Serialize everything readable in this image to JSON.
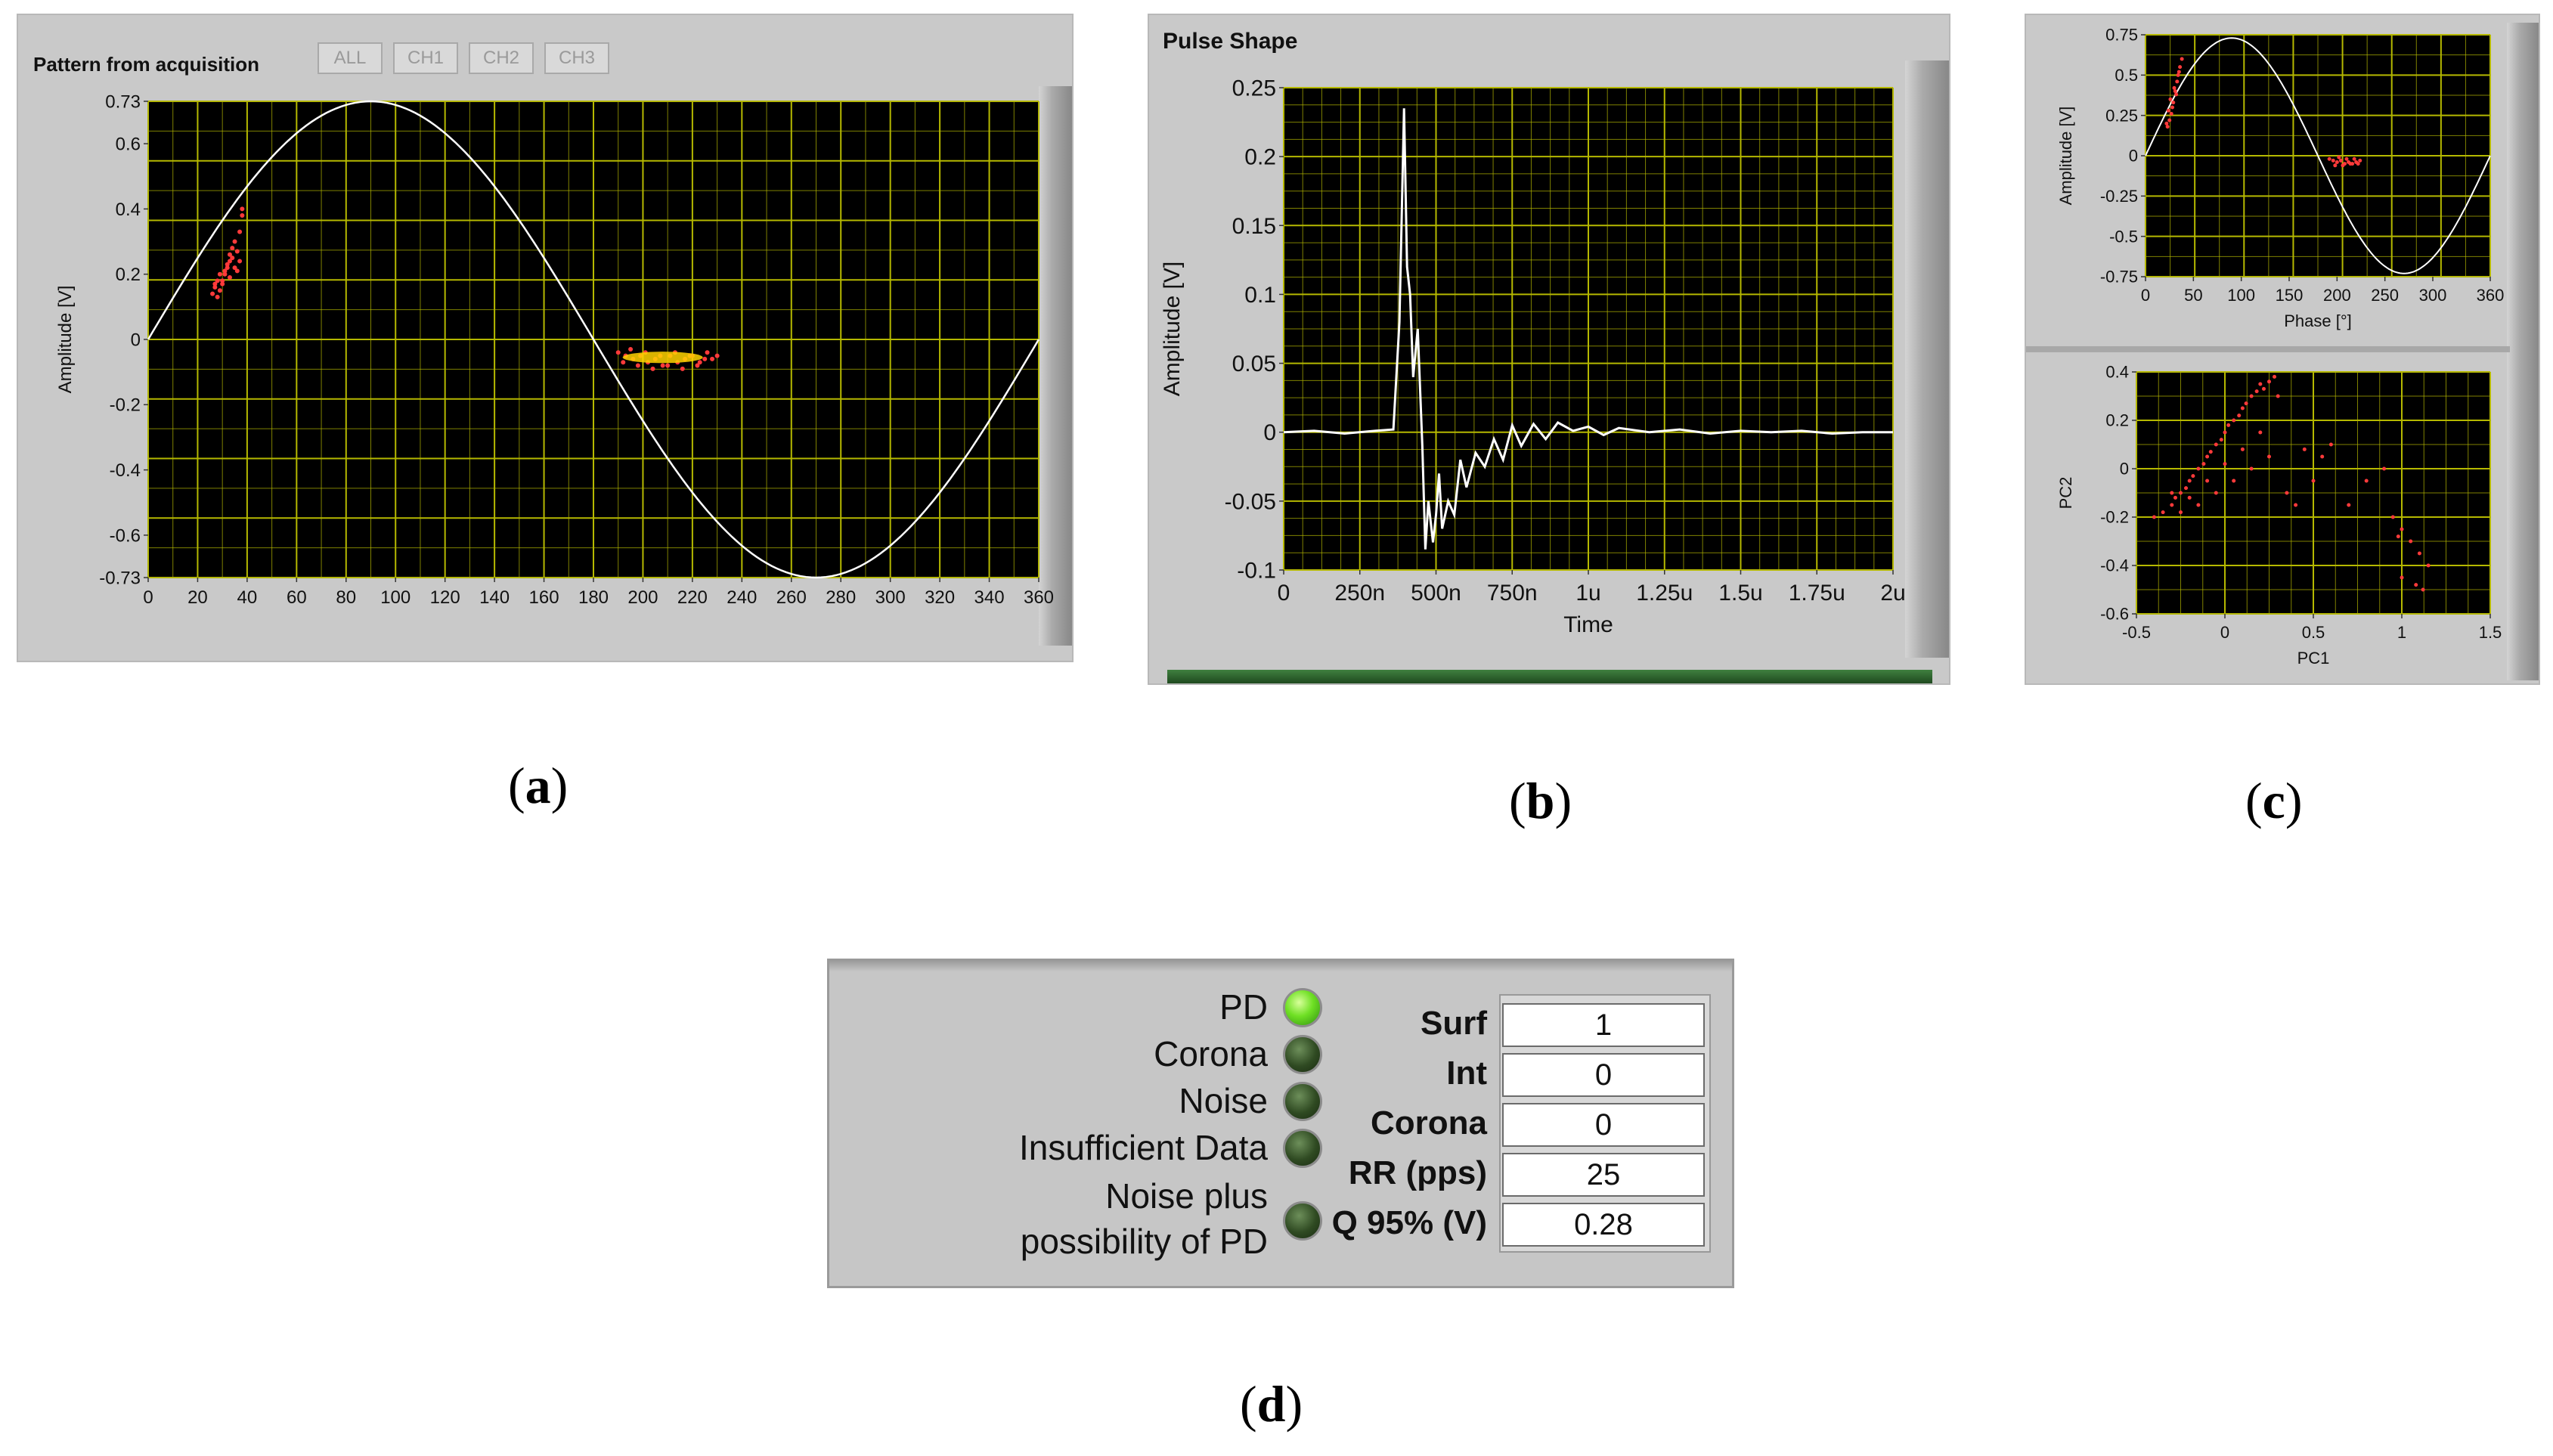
{
  "panel_a": {
    "title": "Pattern from acquisition",
    "buttons": [
      "ALL",
      "CH1",
      "CH2",
      "CH3"
    ],
    "caption": "a"
  },
  "panel_b": {
    "title": "Pulse Shape",
    "caption": "b"
  },
  "panel_c": {
    "caption": "c"
  },
  "panel_d": {
    "caption": "d",
    "indicators": [
      {
        "label": "PD",
        "on": true
      },
      {
        "label": "Corona",
        "on": false
      },
      {
        "label": "Noise",
        "on": false
      },
      {
        "label": "Insufficient Data",
        "on": false
      },
      {
        "label_line1": "Noise plus",
        "label_line2": "possibility of PD",
        "on": false
      }
    ],
    "values": [
      {
        "label": "Surf",
        "value": "1"
      },
      {
        "label": "Int",
        "value": "0"
      },
      {
        "label": "Corona",
        "value": "0"
      },
      {
        "label": "RR (pps)",
        "value": "25"
      },
      {
        "label": "Q 95% (V)",
        "value": "0.28"
      }
    ]
  },
  "colors": {
    "plot_bg": "#000000",
    "grid": "#b5b800",
    "trace": "#ffffff",
    "scatter": "#ff3a3a",
    "scatter_core": "#ffd400",
    "led_on": "#6fe024",
    "led_off": "#2f4a22"
  },
  "chart_data": [
    {
      "id": "pattern",
      "type": "scatter",
      "xlabel": "",
      "ylabel": "Amplitude [V]",
      "xlim": [
        0,
        360
      ],
      "ylim": [
        -0.73,
        0.73
      ],
      "xticks": [
        "0",
        "20",
        "40",
        "60",
        "80",
        "100",
        "120",
        "140",
        "160",
        "180",
        "200",
        "220",
        "240",
        "260",
        "280",
        "300",
        "320",
        "340",
        "360"
      ],
      "yticks": [
        "0.73",
        "0.6",
        "0.4",
        "0.2",
        "0",
        "-0.2",
        "-0.4",
        "-0.6",
        "-0.73"
      ],
      "reference_sine_amplitude": 0.73,
      "series": [
        {
          "x": [
            26,
            27,
            28,
            29,
            30,
            31,
            32,
            33,
            34,
            35,
            36,
            37,
            38,
            29,
            31,
            33,
            35,
            37,
            28,
            30,
            32,
            34,
            36,
            27,
            33,
            38
          ],
          "y": [
            0.14,
            0.16,
            0.18,
            0.2,
            0.17,
            0.21,
            0.23,
            0.19,
            0.25,
            0.22,
            0.27,
            0.24,
            0.38,
            0.15,
            0.2,
            0.26,
            0.3,
            0.33,
            0.13,
            0.18,
            0.22,
            0.28,
            0.21,
            0.17,
            0.24,
            0.4
          ]
        },
        {
          "x": [
            190,
            193,
            196,
            199,
            202,
            205,
            208,
            211,
            214,
            217,
            220,
            223,
            226,
            192,
            198,
            204,
            210,
            216,
            222,
            228,
            195,
            201,
            207,
            213,
            219,
            225,
            230
          ],
          "y": [
            -0.04,
            -0.05,
            -0.06,
            -0.05,
            -0.07,
            -0.06,
            -0.08,
            -0.05,
            -0.07,
            -0.06,
            -0.05,
            -0.07,
            -0.04,
            -0.07,
            -0.08,
            -0.09,
            -0.08,
            -0.09,
            -0.08,
            -0.06,
            -0.03,
            -0.04,
            -0.05,
            -0.04,
            -0.05,
            -0.06,
            -0.05
          ]
        }
      ]
    },
    {
      "id": "pulse",
      "type": "line",
      "xlabel": "Time",
      "ylabel": "Amplitude [V]",
      "xlim": [
        0,
        2
      ],
      "ylim": [
        -0.1,
        0.25
      ],
      "xticks": [
        "0",
        "250n",
        "500n",
        "750n",
        "1u",
        "1.25u",
        "1.5u",
        "1.75u",
        "2u"
      ],
      "yticks": [
        "0.25",
        "0.2",
        "0.15",
        "0.1",
        "0.05",
        "0",
        "-0.05",
        "-0.1"
      ],
      "x": [
        0,
        0.1,
        0.2,
        0.3,
        0.36,
        0.38,
        0.395,
        0.405,
        0.415,
        0.425,
        0.44,
        0.455,
        0.465,
        0.475,
        0.49,
        0.5,
        0.51,
        0.52,
        0.54,
        0.56,
        0.58,
        0.6,
        0.63,
        0.66,
        0.69,
        0.72,
        0.75,
        0.78,
        0.82,
        0.86,
        0.9,
        0.95,
        1.0,
        1.05,
        1.1,
        1.2,
        1.3,
        1.4,
        1.5,
        1.6,
        1.7,
        1.8,
        1.9,
        2.0
      ],
      "y": [
        0,
        0.001,
        -0.001,
        0.001,
        0.002,
        0.08,
        0.235,
        0.12,
        0.1,
        0.04,
        0.075,
        -0.01,
        -0.085,
        -0.05,
        -0.08,
        -0.06,
        -0.03,
        -0.07,
        -0.05,
        -0.06,
        -0.02,
        -0.04,
        -0.015,
        -0.025,
        -0.005,
        -0.02,
        0.005,
        -0.01,
        0.006,
        -0.005,
        0.007,
        0.001,
        0.004,
        -0.002,
        0.003,
        0.0,
        0.002,
        -0.001,
        0.001,
        0.0,
        0.001,
        -0.001,
        0.0,
        0.0
      ]
    },
    {
      "id": "phase",
      "type": "scatter",
      "xlabel": "Phase [°]",
      "ylabel": "Amplitude [V]",
      "xlim": [
        0,
        360
      ],
      "ylim": [
        -0.75,
        0.75
      ],
      "xticks": [
        "0",
        "50",
        "100",
        "150",
        "200",
        "250",
        "300",
        "360"
      ],
      "yticks": [
        "0.75",
        "0.5",
        "0.25",
        "0",
        "-0.25",
        "-0.5",
        "-0.75"
      ],
      "reference_sine_amplitude": 0.73,
      "series": [
        {
          "x": [
            22,
            24,
            26,
            28,
            30,
            32,
            34,
            36,
            25,
            29,
            33,
            27,
            31,
            35,
            38,
            23
          ],
          "y": [
            0.2,
            0.28,
            0.35,
            0.3,
            0.42,
            0.38,
            0.5,
            0.55,
            0.22,
            0.33,
            0.46,
            0.26,
            0.4,
            0.52,
            0.6,
            0.18
          ]
        },
        {
          "x": [
            192,
            196,
            200,
            204,
            208,
            212,
            216,
            220,
            224,
            198,
            206,
            214,
            222,
            202,
            210,
            218
          ],
          "y": [
            -0.02,
            -0.03,
            -0.04,
            -0.03,
            -0.05,
            -0.04,
            -0.05,
            -0.04,
            -0.03,
            -0.06,
            -0.06,
            -0.05,
            -0.05,
            -0.01,
            -0.02,
            -0.02
          ]
        }
      ]
    },
    {
      "id": "pca",
      "type": "scatter",
      "xlabel": "PC1",
      "ylabel": "PC2",
      "xlim": [
        -0.5,
        1.5
      ],
      "ylim": [
        -0.6,
        0.4
      ],
      "xticks": [
        "-0.5",
        "0",
        "0.5",
        "1",
        "1.5"
      ],
      "yticks": [
        "0.4",
        "0.2",
        "0",
        "-0.2",
        "-0.4",
        "-0.6"
      ],
      "series": [
        {
          "x": [
            -0.4,
            -0.35,
            -0.3,
            -0.28,
            -0.25,
            -0.22,
            -0.2,
            -0.18,
            -0.15,
            -0.12,
            -0.1,
            -0.08,
            -0.05,
            -0.02,
            0.0,
            0.02,
            0.05,
            0.08,
            0.1,
            0.12,
            0.15,
            0.18,
            0.2,
            0.22,
            0.25,
            0.28,
            0.3,
            -0.3,
            -0.2,
            -0.1,
            0.0,
            0.1,
            0.2,
            -0.25,
            -0.15,
            -0.05,
            0.05,
            0.15,
            0.25,
            0.35,
            0.4,
            0.5,
            0.6,
            0.7,
            0.8,
            0.9,
            0.95,
            1.0,
            1.05,
            1.1,
            1.15,
            1.0,
            1.08,
            0.98,
            1.12,
            0.55,
            0.45
          ],
          "y": [
            -0.2,
            -0.18,
            -0.15,
            -0.12,
            -0.1,
            -0.08,
            -0.05,
            -0.03,
            0.0,
            0.02,
            0.05,
            0.07,
            0.1,
            0.12,
            0.15,
            0.18,
            0.2,
            0.22,
            0.25,
            0.27,
            0.3,
            0.32,
            0.35,
            0.33,
            0.36,
            0.38,
            0.3,
            -0.1,
            -0.12,
            -0.05,
            0.02,
            0.08,
            0.15,
            -0.18,
            -0.15,
            -0.1,
            -0.05,
            0.0,
            0.05,
            -0.1,
            -0.15,
            -0.05,
            0.1,
            -0.15,
            -0.05,
            0.0,
            -0.2,
            -0.25,
            -0.3,
            -0.35,
            -0.4,
            -0.45,
            -0.48,
            -0.28,
            -0.5,
            0.05,
            0.08
          ]
        }
      ]
    }
  ]
}
